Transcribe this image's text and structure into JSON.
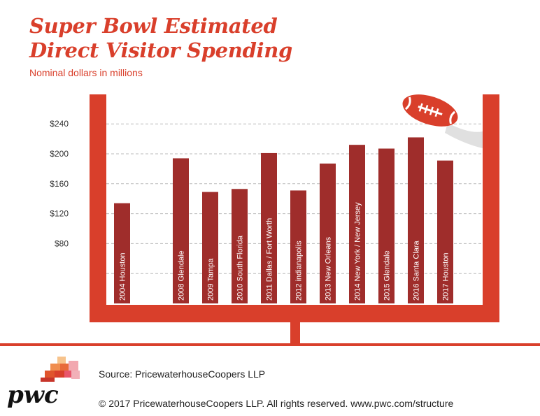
{
  "header": {
    "title_line1": "Super Bowl Estimated",
    "title_line2": "Direct Visitor Spending",
    "subtitle": "Nominal dollars in millions"
  },
  "footer": {
    "source": "Source: PricewaterhouseCoopers LLP",
    "copyright": "© 2017 PricewaterhouseCoopers LLP. All rights reserved. www.pwc.com/structure",
    "logo_text": "pwc"
  },
  "colors": {
    "goalpost": "#d93f2b",
    "bar": "#9f2d2b",
    "gridline": "#bbbbbb",
    "tick_text": "#333333",
    "football": "#d93f2b",
    "logo_orange": "#e0542c"
  },
  "chart_data": {
    "type": "bar",
    "title": "Super Bowl Estimated Direct Visitor Spending",
    "subtitle": "Nominal dollars in millions",
    "xlabel": "",
    "ylabel": "Nominal dollars in millions",
    "ylim": [
      0,
      240
    ],
    "yticks": [
      80,
      120,
      160,
      200,
      240
    ],
    "ytick_labels": [
      "$80",
      "$120",
      "$160",
      "$200",
      "$240"
    ],
    "grid": true,
    "categories": [
      "2004 Houston",
      "2008 Glendale",
      "2009 Tampa",
      "2010 South Florida",
      "2011 Dallas / Fort Worth",
      "2012 indianapolis",
      "2013 New Orleans",
      "2014 New York / New Jersey",
      "2015 Glendale",
      "2016 Santa Clara",
      "2017 Houston"
    ],
    "values": [
      134,
      194,
      149,
      153,
      201,
      151,
      187,
      212,
      207,
      222,
      191
    ]
  }
}
